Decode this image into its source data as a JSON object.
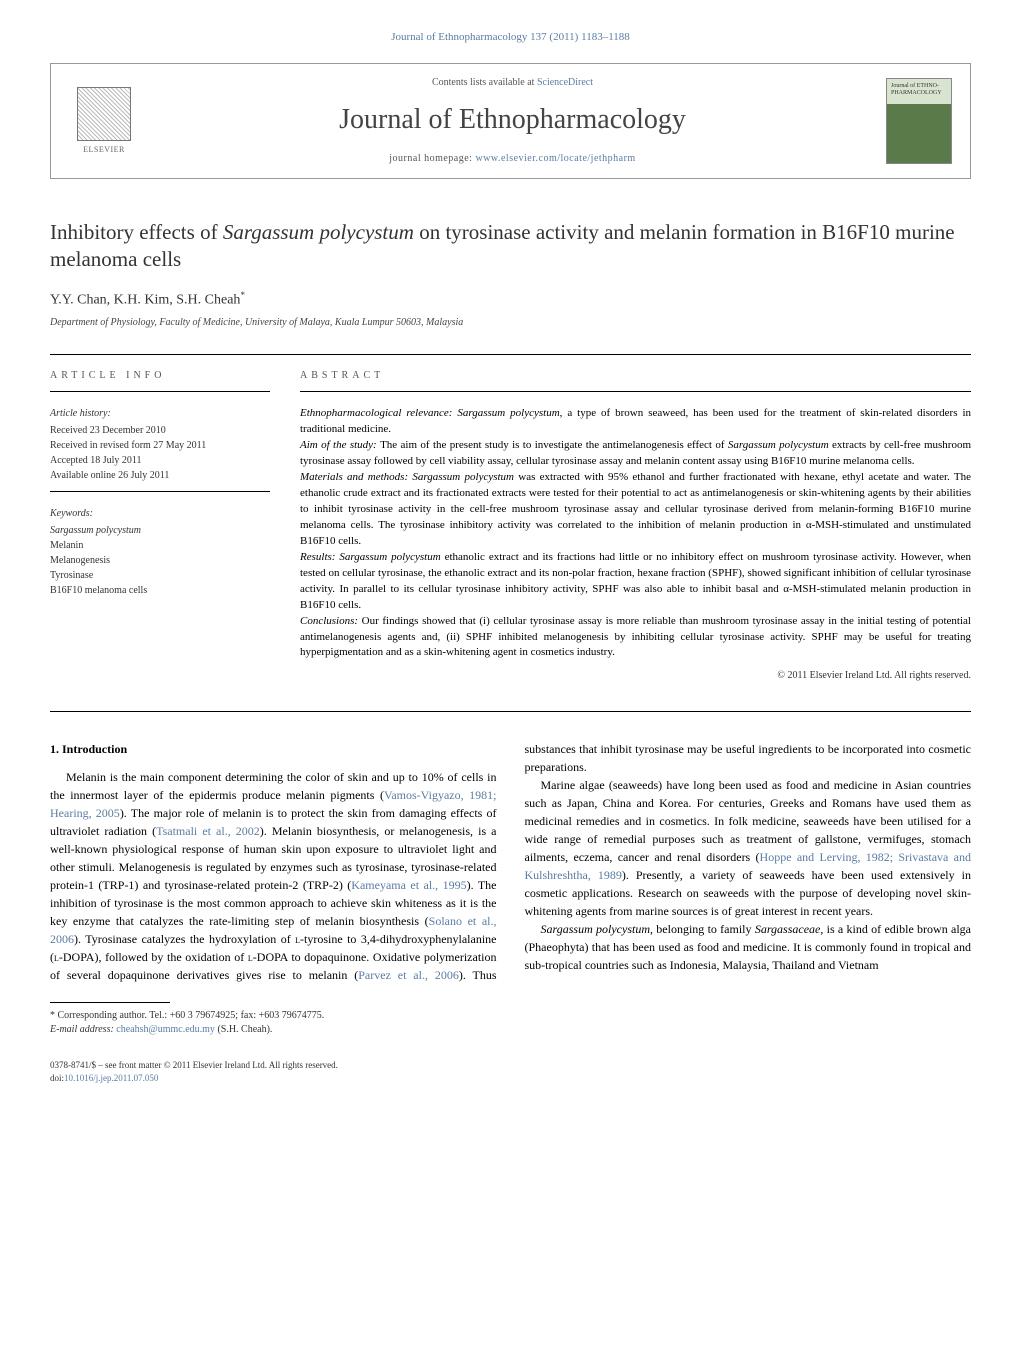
{
  "header": {
    "citation": "Journal of Ethnopharmacology 137 (2011) 1183–1188",
    "contents_prefix": "Contents lists available at ",
    "contents_link": "ScienceDirect",
    "journal_title": "Journal of Ethnopharmacology",
    "homepage_prefix": "journal homepage: ",
    "homepage_url": "www.elsevier.com/locate/jethpharm",
    "publisher": "ELSEVIER",
    "cover_text": "Journal of\nETHNO-\nPHARMACOLOGY"
  },
  "article": {
    "title_pre": "Inhibitory effects of ",
    "title_species": "Sargassum polycystum",
    "title_post": " on tyrosinase activity and melanin formation in B16F10 murine melanoma cells",
    "authors": "Y.Y. Chan, K.H. Kim, S.H. Cheah",
    "corr_marker": "*",
    "affiliation": "Department of Physiology, Faculty of Medicine, University of Malaya, Kuala Lumpur 50603, Malaysia"
  },
  "info": {
    "heading": "article info",
    "history_label": "Article history:",
    "received": "Received 23 December 2010",
    "revised": "Received in revised form 27 May 2011",
    "accepted": "Accepted 18 July 2011",
    "online": "Available online 26 July 2011",
    "keywords_label": "Keywords:",
    "kw1": "Sargassum polycystum",
    "kw2": "Melanin",
    "kw3": "Melanogenesis",
    "kw4": "Tyrosinase",
    "kw5": "B16F10 melanoma cells"
  },
  "abstract": {
    "heading": "abstract",
    "relevance_label": "Ethnopharmacological relevance: ",
    "relevance_text_pre": "",
    "relevance_species": "Sargassum polycystum",
    "relevance_text_post": ", a type of brown seaweed, has been used for the treatment of skin-related disorders in traditional medicine.",
    "aim_label": "Aim of the study: ",
    "aim_text_pre": "The aim of the present study is to investigate the antimelanogenesis effect of ",
    "aim_species": "Sargassum polycystum",
    "aim_text_post": " extracts by cell-free mushroom tyrosinase assay followed by cell viability assay, cellular tyrosinase assay and melanin content assay using B16F10 murine melanoma cells.",
    "methods_label": "Materials and methods: ",
    "methods_species": "Sargassum polycystum",
    "methods_text": " was extracted with 95% ethanol and further fractionated with hexane, ethyl acetate and water. The ethanolic crude extract and its fractionated extracts were tested for their potential to act as antimelanogenesis or skin-whitening agents by their abilities to inhibit tyrosinase activity in the cell-free mushroom tyrosinase assay and cellular tyrosinase derived from melanin-forming B16F10 murine melanoma cells. The tyrosinase inhibitory activity was correlated to the inhibition of melanin production in α-MSH-stimulated and unstimulated B16F10 cells.",
    "results_label": "Results: ",
    "results_species": "Sargassum polycystum",
    "results_text": " ethanolic extract and its fractions had little or no inhibitory effect on mushroom tyrosinase activity. However, when tested on cellular tyrosinase, the ethanolic extract and its non-polar fraction, hexane fraction (SPHF), showed significant inhibition of cellular tyrosinase activity. In parallel to its cellular tyrosinase inhibitory activity, SPHF was also able to inhibit basal and α-MSH-stimulated melanin production in B16F10 cells.",
    "conclusions_label": "Conclusions: ",
    "conclusions_text": "Our findings showed that (i) cellular tyrosinase assay is more reliable than mushroom tyrosinase assay in the initial testing of potential antimelanogenesis agents and, (ii) SPHF inhibited melanogenesis by inhibiting cellular tyrosinase activity. SPHF may be useful for treating hyperpigmentation and as a skin-whitening agent in cosmetics industry.",
    "copyright": "© 2011 Elsevier Ireland Ltd. All rights reserved."
  },
  "body": {
    "section_heading": "1. Introduction",
    "p1_a": "Melanin is the main component determining the color of skin and up to 10% of cells in the innermost layer of the epidermis produce melanin pigments (",
    "p1_ref1": "Vamos-Vigyazo, 1981; Hearing, 2005",
    "p1_b": "). The major role of melanin is to protect the skin from damaging effects of ultraviolet radiation (",
    "p1_ref2": "Tsatmali et al., 2002",
    "p1_c": "). Melanin biosynthesis, or melanogenesis, is a well-known physiological response of human skin upon exposure to ultraviolet light and other stimuli. Melanogenesis is regulated by enzymes such as tyrosinase, tyrosinase-related protein-1 (TRP-1) and tyrosinase-related protein-2 (TRP-2) (",
    "p1_ref3": "Kameyama et al., 1995",
    "p1_d": "). The inhibition of tyrosinase is the most common approach to achieve skin whiteness as it is the key enzyme that catalyzes the rate-limiting step of melanin biosynthesis (",
    "p1_ref4": "Solano et al., 2006",
    "p1_e": "). Tyrosinase catalyzes the hydroxylation of ",
    "p1_sc1": "l",
    "p1_f": "-tyrosine to 3,4-dihydroxyphenylalanine (",
    "p1_sc2": "l",
    "p1_g": "-DOPA), followed by the oxidation of ",
    "p1_sc3": "l",
    "p1_h": "-DOPA to dopaquinone. Oxidative polymerization of several dopaquinone derivatives gives rise to melanin (",
    "p1_ref5": "Parvez et al., 2006",
    "p1_i": "). Thus substances that inhibit tyrosinase may be useful ingredients to be incorporated into cosmetic preparations.",
    "p2_a": "Marine algae (seaweeds) have long been used as food and medicine in Asian countries such as Japan, China and Korea. For centuries, Greeks and Romans have used them as medicinal remedies and in cosmetics. In folk medicine, seaweeds have been utilised for a wide range of remedial purposes such as treatment of gallstone, vermifuges, stomach ailments, eczema, cancer and renal disorders (",
    "p2_ref1": "Hoppe and Lerving, 1982; Srivastava and Kulshreshtha, 1989",
    "p2_b": "). Presently, a variety of seaweeds have been used extensively in cosmetic applications. Research on seaweeds with the purpose of developing novel skin-whitening agents from marine sources is of great interest in recent years.",
    "p3_species": "Sargassum polycystum",
    "p3_a": ", belonging to family ",
    "p3_family": "Sargassaceae",
    "p3_b": ", is a kind of edible brown alga (Phaeophyta) that has been used as food and medicine. It is commonly found in tropical and sub-tropical countries such as Indonesia, Malaysia, Thailand and Vietnam"
  },
  "footnote": {
    "corr": "* Corresponding author. Tel.: +60 3 79674925; fax: +603 79674775.",
    "email_label": "E-mail address: ",
    "email": "cheahsh@ummc.edu.my",
    "email_suffix": " (S.H. Cheah)."
  },
  "footer": {
    "line1": "0378-8741/$ – see front matter © 2011 Elsevier Ireland Ltd. All rights reserved.",
    "doi_prefix": "doi:",
    "doi": "10.1016/j.jep.2011.07.050"
  },
  "colors": {
    "link": "#5b7ca3",
    "text": "#000000",
    "muted": "#555555"
  }
}
